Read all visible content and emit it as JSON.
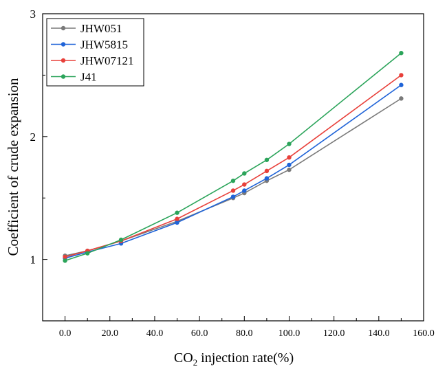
{
  "chart_data": {
    "type": "line",
    "xlabel_main": "CO",
    "xlabel_sub": "2",
    "xlabel_rest": " injection rate(%)",
    "ylabel": "Coefficient of crude expansion",
    "xlim": [
      -10,
      160
    ],
    "ylim": [
      0.5,
      3
    ],
    "x_ticks": [
      0,
      20,
      40,
      60,
      80,
      100,
      120,
      140,
      160
    ],
    "x_tick_labels": [
      "0.0",
      "20.0",
      "40.0",
      "60.0",
      "80.0",
      "100.0",
      "120.0",
      "140.0",
      "160.0"
    ],
    "y_ticks": [
      1,
      2,
      3
    ],
    "y_tick_labels": [
      "1",
      "2",
      "3"
    ],
    "legend_position": "top-left",
    "grid": false,
    "x": [
      0,
      10,
      25,
      50,
      75,
      80,
      90,
      100,
      150
    ],
    "series": [
      {
        "name": "JHW051",
        "color": "#7a7a7a",
        "values": [
          1.03,
          1.07,
          1.15,
          1.31,
          1.5,
          1.54,
          1.64,
          1.73,
          2.31
        ]
      },
      {
        "name": "JHW5815",
        "color": "#2064d8",
        "values": [
          1.01,
          1.06,
          1.13,
          1.3,
          1.51,
          1.56,
          1.66,
          1.77,
          2.42
        ]
      },
      {
        "name": "JHW07121",
        "color": "#e8403a",
        "values": [
          1.02,
          1.07,
          1.15,
          1.33,
          1.56,
          1.61,
          1.72,
          1.83,
          2.5
        ]
      },
      {
        "name": "J41",
        "color": "#2ba45a",
        "values": [
          0.99,
          1.05,
          1.16,
          1.38,
          1.64,
          1.7,
          1.81,
          1.94,
          2.68
        ]
      }
    ]
  }
}
